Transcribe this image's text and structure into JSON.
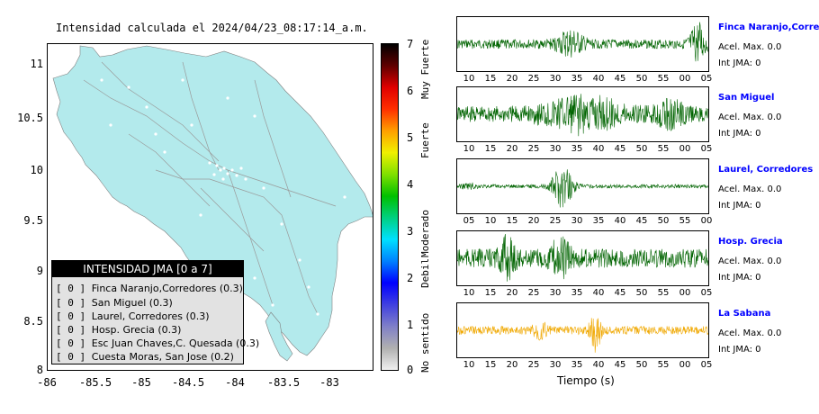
{
  "map": {
    "title": "Intensidad calculada el 2024/04/23_08:17:14_a.m.",
    "y_ticks": [
      "11",
      "10.5",
      "10",
      "9.5",
      "9",
      "8.5",
      "8"
    ],
    "x_ticks": [
      "-86",
      "-85.5",
      "-85",
      "-84.5",
      "-84",
      "-83.5",
      "-83"
    ],
    "land_color": "#b3eaec",
    "legend_title": "INTENSIDAD JMA [0 a 7]",
    "legend_items": [
      {
        "code": "[ 0 ]",
        "name": "Finca Naranjo,Corredores (0.3)"
      },
      {
        "code": "[ 0 ]",
        "name": "San Miguel (0.3)"
      },
      {
        "code": "[ 0 ]",
        "name": "Laurel, Corredores (0.3)"
      },
      {
        "code": "[ 0 ]",
        "name": "Hosp. Grecia (0.3)"
      },
      {
        "code": "[ 0 ]",
        "name": "Esc Juan Chaves,C. Quesada (0.3)"
      },
      {
        "code": "[ 0 ]",
        "name": "Cuesta Moras, San Jose (0.2)"
      }
    ]
  },
  "colorbar": {
    "ticks": [
      "7",
      "6",
      "5",
      "4",
      "3",
      "2",
      "1",
      "0"
    ],
    "labels": [
      "Muy Fuerte",
      "Fuerte",
      "Moderado",
      "Debil",
      "No sentido"
    ],
    "stops": [
      "#f0f0f0",
      "#b0b0b0",
      "#8080c8",
      "#4040e0",
      "#0000ff",
      "#0080ff",
      "#00e0ff",
      "#00d080",
      "#00c000",
      "#80e000",
      "#f0f000",
      "#ffa000",
      "#ff3000",
      "#e00000",
      "#600000",
      "#000000"
    ]
  },
  "traces": {
    "xlabel": "Tiempo (s)",
    "accel_label": "Acel. Max. 0.0",
    "int_label": "Int JMA: 0",
    "stations": [
      {
        "name": "Finca Naranjo,Corredor",
        "color": "#006400",
        "ticks": [
          "10",
          "15",
          "20",
          "25",
          "30",
          "35",
          "40",
          "45",
          "50",
          "55",
          "00",
          "05"
        ]
      },
      {
        "name": "San Miguel",
        "color": "#006400",
        "ticks": [
          "10",
          "15",
          "20",
          "25",
          "30",
          "35",
          "40",
          "45",
          "50",
          "55",
          "00",
          "05"
        ]
      },
      {
        "name": "Laurel, Corredores",
        "color": "#006400",
        "ticks": [
          "05",
          "10",
          "15",
          "20",
          "25",
          "30",
          "35",
          "40",
          "45",
          "50",
          "55",
          "00"
        ]
      },
      {
        "name": "Hosp. Grecia",
        "color": "#006400",
        "ticks": [
          "10",
          "15",
          "20",
          "25",
          "30",
          "35",
          "40",
          "45",
          "50",
          "55",
          "00",
          "05"
        ]
      },
      {
        "name": "La Sabana",
        "color": "#f0a800",
        "ticks": [
          "10",
          "15",
          "20",
          "25",
          "30",
          "35",
          "40",
          "45",
          "50",
          "55",
          "00",
          "05"
        ]
      }
    ]
  },
  "chart_data": {
    "type": "heatmap",
    "title": "Intensidad calculada el 2024/04/23_08:17:14_a.m.",
    "xlim": [
      -86,
      -82.5
    ],
    "ylim": [
      8,
      11.3
    ],
    "colorbar_range": [
      0,
      7
    ],
    "stations": [
      {
        "name": "Finca Naranjo,Corredores",
        "intensity": 0.3,
        "class": 0
      },
      {
        "name": "San Miguel",
        "intensity": 0.3,
        "class": 0
      },
      {
        "name": "Laurel, Corredores",
        "intensity": 0.3,
        "class": 0
      },
      {
        "name": "Hosp. Grecia",
        "intensity": 0.3,
        "class": 0
      },
      {
        "name": "Esc Juan Chaves,C. Quesada",
        "intensity": 0.3,
        "class": 0
      },
      {
        "name": "Cuesta Moras, San Jose",
        "intensity": 0.2,
        "class": 0
      }
    ],
    "traces": [
      {
        "name": "Finca Naranjo,Corredor",
        "accel_max": 0.0,
        "int_jma": 0
      },
      {
        "name": "San Miguel",
        "accel_max": 0.0,
        "int_jma": 0
      },
      {
        "name": "Laurel, Corredores",
        "accel_max": 0.0,
        "int_jma": 0
      },
      {
        "name": "Hosp. Grecia",
        "accel_max": 0.0,
        "int_jma": 0
      },
      {
        "name": "La Sabana",
        "accel_max": 0.0,
        "int_jma": 0
      }
    ]
  }
}
